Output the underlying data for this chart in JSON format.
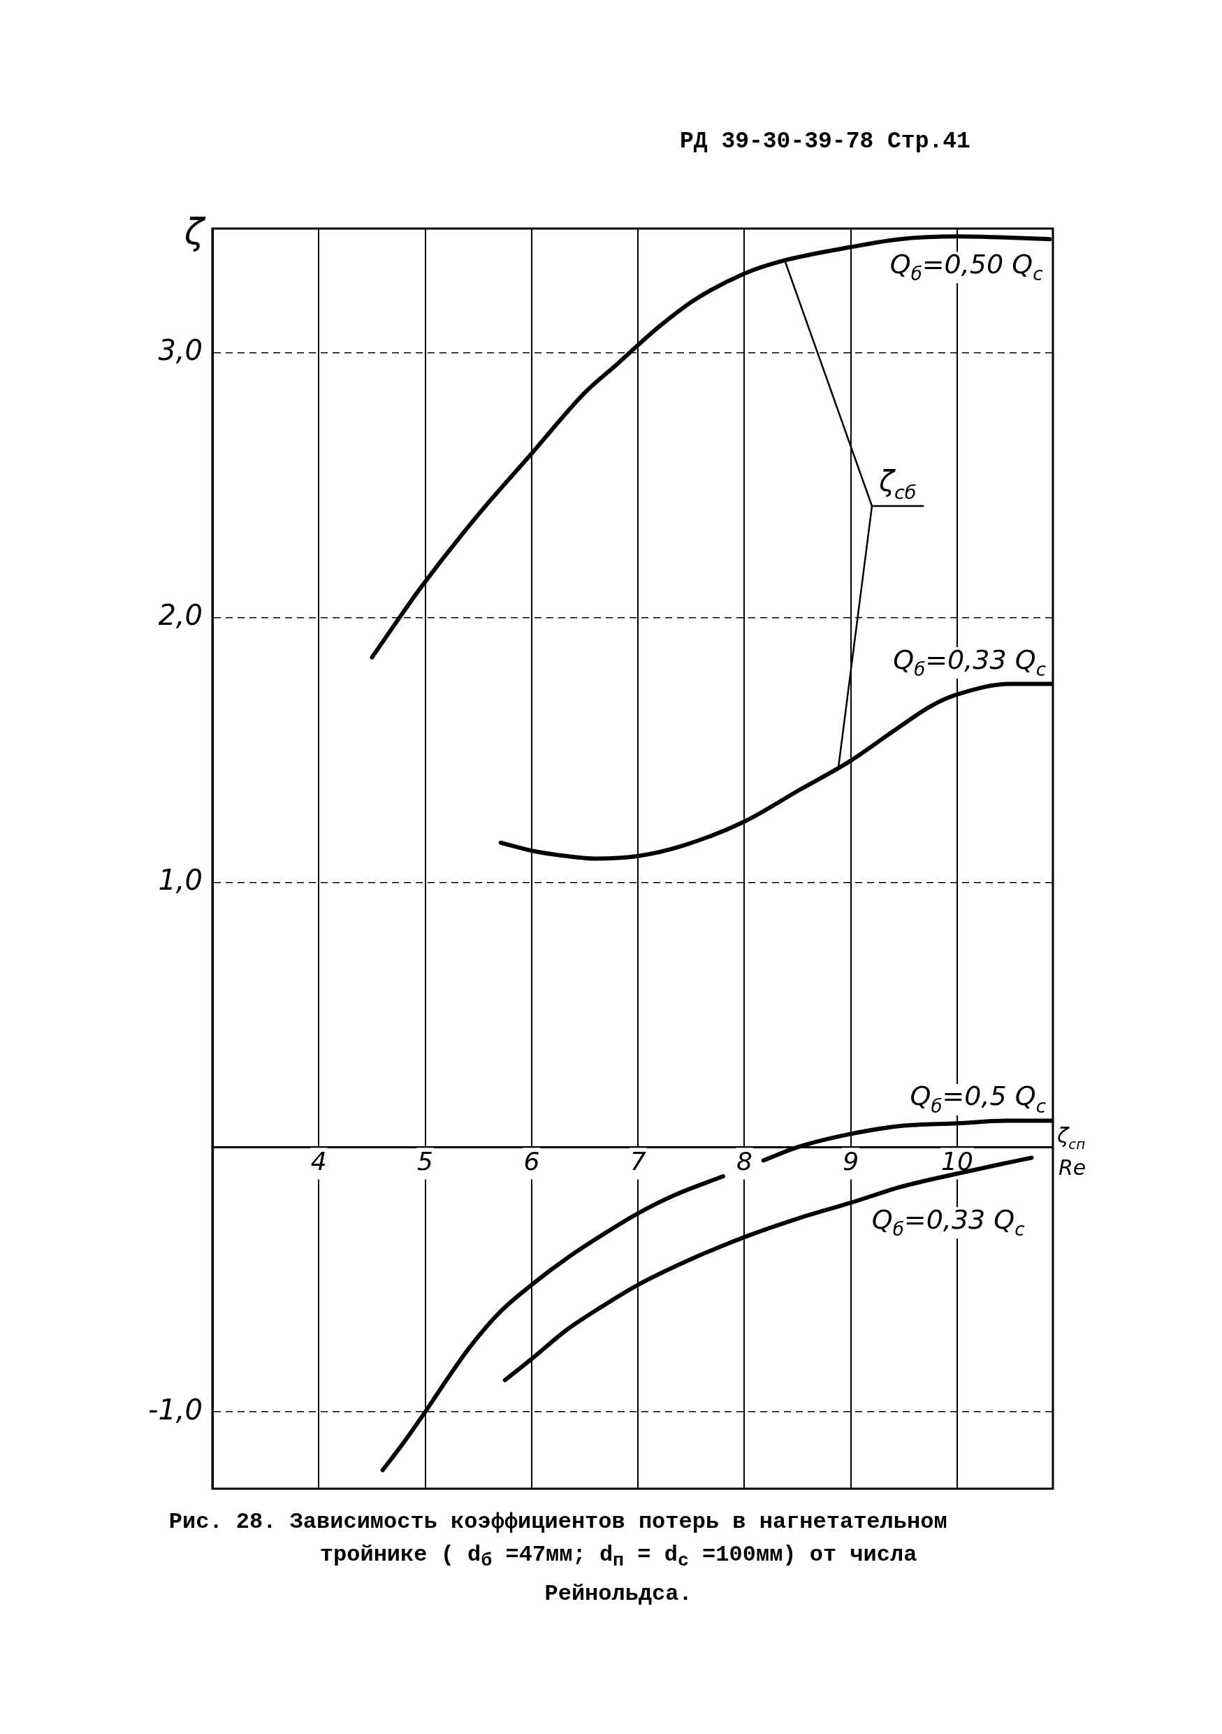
{
  "chart_data": {
    "type": "line",
    "title": "Рис. 28. Зависимость коэффициентов потерь в нагнетательном тройнике ( d$_{б}$ =47мм; d$_{п}$ = d$_{с}$ =100мм) от числа Рейнольдса.",
    "xlabel": "Re",
    "ylabel": "ζ",
    "annotations": [
      "РД 39-30-39-78 Стр.41",
      {
        "text": "ζ$_{сб}$",
        "x": 8.38,
        "y": 3.35
      },
      "ζ$_{сп}$"
    ],
    "xlim": [
      3,
      10.9
    ],
    "xticks": [
      4,
      5,
      6,
      7,
      8,
      9,
      10
    ],
    "ylim": [
      -1.29,
      3.47
    ],
    "yticks": [
      {
        "value": 3,
        "label": "3,0"
      },
      {
        "value": 2,
        "label": "2,0"
      },
      {
        "value": 1,
        "label": "1,0"
      },
      {
        "value": 0,
        "label": null
      },
      {
        "value": -1,
        "label": "-1,0"
      }
    ],
    "grid": true,
    "legend": false,
    "series": [
      {
        "name": "Q$_{б}$=0,50 Q$_{с}$",
        "color": "#000000",
        "x": [
          4.5,
          4.74,
          4.97,
          5.5,
          6.0,
          6.5,
          6.81,
          7.0,
          7.2,
          7.53,
          8.0,
          8.38,
          9.0,
          9.46,
          10.0,
          10.87
        ],
        "values": [
          1.85,
          1.99,
          2.12,
          2.39,
          2.62,
          2.85,
          2.96,
          3.03,
          3.1,
          3.2,
          3.3,
          3.35,
          3.4,
          3.43,
          3.44,
          3.43
        ]
      },
      {
        "name": "Q$_{б}$=0,33 Q$_{с}$",
        "color": "#000000",
        "x": [
          5.71,
          6.0,
          6.32,
          6.6,
          7.0,
          7.43,
          8.0,
          8.52,
          9.0,
          9.43,
          9.77,
          10.0,
          10.5,
          10.9
        ],
        "values": [
          1.15,
          1.12,
          1.1,
          1.09,
          1.1,
          1.14,
          1.23,
          1.35,
          1.46,
          1.58,
          1.67,
          1.71,
          1.75,
          1.75
        ]
      },
      {
        "name": "Q$_{б}$=0,5 Q$_{с}$",
        "color": "#000000",
        "x": [
          4.6,
          4.79,
          5.0,
          5.2,
          5.43,
          5.71,
          6.0,
          6.33,
          6.67,
          7.0,
          7.35,
          7.8,
          8.0,
          8.18,
          8.5,
          9.0,
          9.47,
          10.0,
          10.46,
          10.9
        ],
        "values": [
          -1.22,
          -1.12,
          -1.0,
          -0.88,
          -0.75,
          -0.62,
          -0.52,
          -0.42,
          -0.33,
          -0.25,
          -0.18,
          -0.11,
          null,
          -0.05,
          0.0,
          0.05,
          0.08,
          0.09,
          0.1,
          0.1
        ]
      },
      {
        "name": "Q$_{б}$=0,33 Q$_{с}$",
        "color": "#000000",
        "x": [
          5.75,
          6.0,
          6.33,
          6.67,
          7.0,
          7.46,
          8.0,
          8.5,
          9.0,
          9.47,
          10.0,
          10.46,
          10.7
        ],
        "values": [
          -0.88,
          -0.8,
          -0.69,
          -0.6,
          -0.52,
          -0.43,
          -0.34,
          -0.27,
          -0.21,
          -0.15,
          -0.1,
          -0.06,
          -0.04
        ]
      }
    ]
  }
}
